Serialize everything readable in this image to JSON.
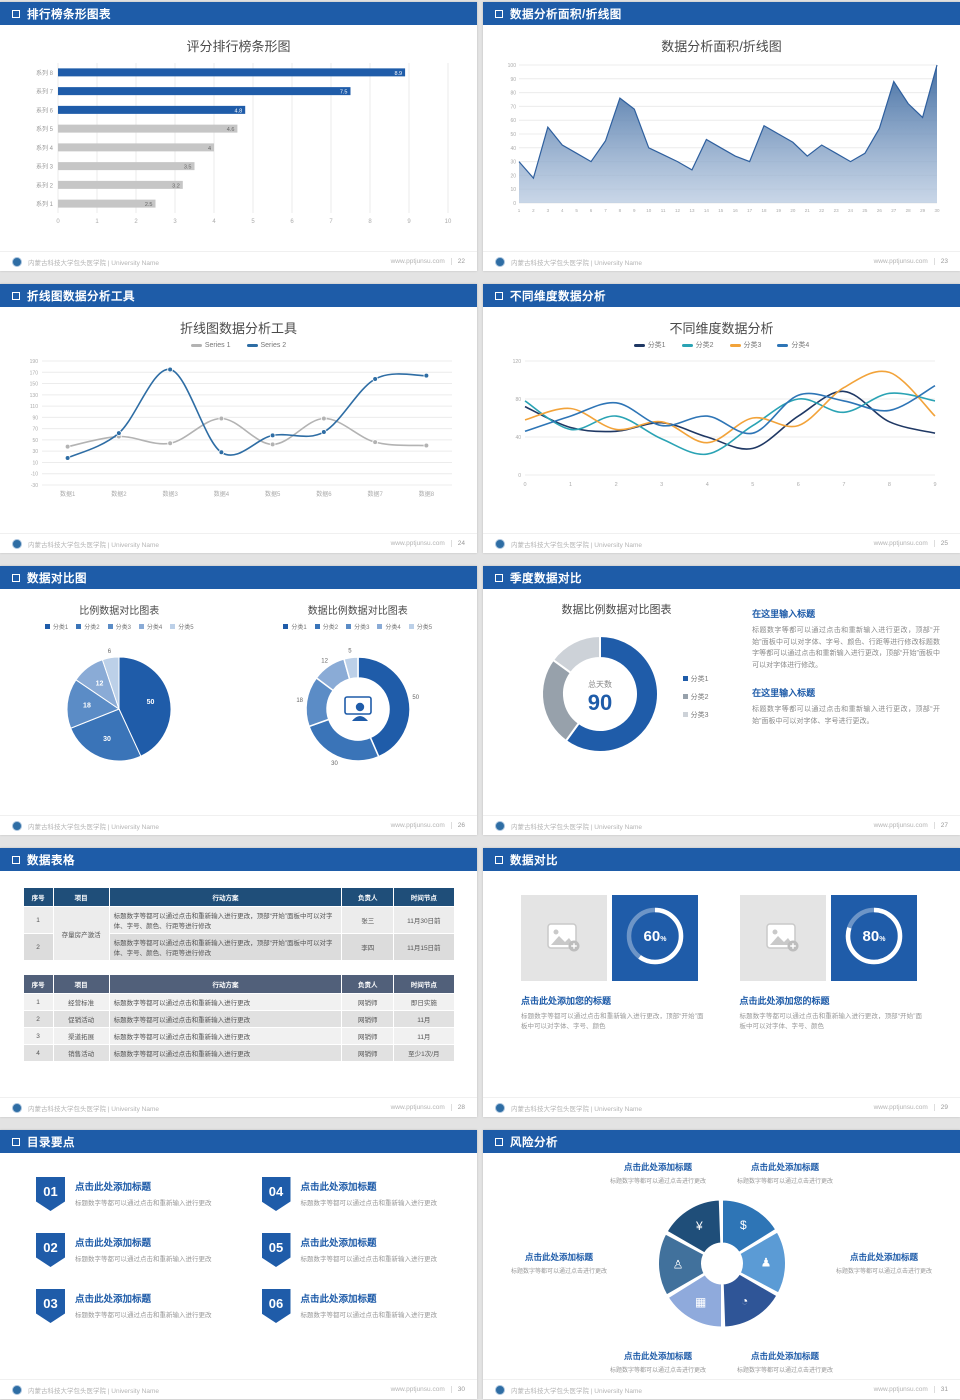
{
  "footer": {
    "org": "内蒙古科技大学包头医学院 | University Name",
    "site": "www.pptjunsu.com"
  },
  "slides": [
    {
      "page": "22",
      "header": "排行榜条形图表",
      "title": "评分排行榜条形图"
    },
    {
      "page": "23",
      "header": "数据分析面积/折线图",
      "title": "数据分析面积/折线图"
    },
    {
      "page": "24",
      "header": "折线图数据分析工具",
      "title": "折线图数据分析工具"
    },
    {
      "page": "25",
      "header": "不同维度数据分析",
      "title": "不同维度数据分析"
    },
    {
      "page": "26",
      "header": "数据对比图",
      "left_title": "比例数据对比图表",
      "right_title": "数据比例数据对比图表"
    },
    {
      "page": "27",
      "header": "季度数据对比",
      "title": "数据比例数据对比图表",
      "blocks": [
        {
          "heading": "在这里输入标题",
          "body": "标题数字等都可以通过点击和重新输入进行更改，顶部“开始”面板中可以对字体、字号、颜色、行距等进行修改标题数字等都可以通过点击和重新输入进行更改，顶部“开始”面板中可以对字体进行修改。"
        },
        {
          "heading": "在这里输入标题",
          "body": "标题数字等都可以通过点击和重新输入进行更改，顶部“开始”面板中可以对字体、字号进行更改。"
        }
      ]
    },
    {
      "page": "28",
      "header": "数据表格"
    },
    {
      "page": "29",
      "header": "数据对比",
      "cards": [
        {
          "title": "点击此处添加您的标题",
          "body": "标题数字等都可以通过点击和重新输入进行更改，顶部“开始”面板中可以对字体、字号、颜色"
        },
        {
          "title": "点击此处添加您的标题",
          "body": "标题数字等都可以通过点击和重新输入进行更改，顶部“开始”面板中可以对字体、字号、颜色"
        }
      ]
    },
    {
      "page": "30",
      "header": "目录要点",
      "items": [
        {
          "num": "01",
          "title": "点击此处添加标题",
          "desc": "标题数字等都可以通过点击和重新输入进行更改"
        },
        {
          "num": "02",
          "title": "点击此处添加标题",
          "desc": "标题数字等都可以通过点击和重新输入进行更改"
        },
        {
          "num": "03",
          "title": "点击此处添加标题",
          "desc": "标题数字等都可以通过点击和重新输入进行更改"
        },
        {
          "num": "04",
          "title": "点击此处添加标题",
          "desc": "标题数字等都可以通过点击和重新输入进行更改"
        },
        {
          "num": "05",
          "title": "点击此处添加标题",
          "desc": "标题数字等都可以通过点击和重新输入进行更改"
        },
        {
          "num": "06",
          "title": "点击此处添加标题",
          "desc": "标题数字等都可以通过点击和重新输入进行更改"
        }
      ]
    },
    {
      "page": "31",
      "header": "风险分析",
      "items": [
        {
          "title": "点击此处添加标题",
          "desc": "标题数字等都可以通过点击进行更改"
        },
        {
          "title": "点击此处添加标题",
          "desc": "标题数字等都可以通过点击进行更改"
        },
        {
          "title": "点击此处添加标题",
          "desc": "标题数字等都可以通过点击进行更改"
        },
        {
          "title": "点击此处添加标题",
          "desc": "标题数字等都可以通过点击进行更改"
        },
        {
          "title": "点击此处添加标题",
          "desc": "标题数字等都可以通过点击进行更改"
        },
        {
          "title": "点击此处添加标题",
          "desc": "标题数字等都可以通过点击进行更改"
        }
      ],
      "icon_names": [
        "coins",
        "user",
        "pie-chart",
        "grid-chart",
        "users",
        "money-bag"
      ],
      "icon_glyphs": [
        "$",
        "♟",
        "◔",
        "▦",
        "♙",
        "¥"
      ],
      "wheel_colors": [
        "#2e75b6",
        "#5b9bd5",
        "#2f5597",
        "#8faadc",
        "#41719c",
        "#1f4e79"
      ]
    }
  ],
  "tables": {
    "table1": {
      "headers": [
        "序号",
        "项目",
        "行动方案",
        "负责人",
        "时间节点"
      ],
      "widths": [
        "7%",
        "13%",
        "54%",
        "12%",
        "14%"
      ],
      "rows": [
        [
          {
            "t": "1"
          },
          {
            "t": "存量房产激活",
            "rs": 2
          },
          {
            "t": "标题数字等都可以通过点击和重新输入进行更改，顶部“开始”面板中可以对字体、字号、颜色、行距等进行修改",
            "cls": "action"
          },
          {
            "t": "张三"
          },
          {
            "t": "11月30日前"
          }
        ],
        [
          {
            "t": "2"
          },
          null,
          {
            "t": "标题数字等都可以通过点击和重新输入进行更改，顶部“开始”面板中可以对字体、字号、颜色、行距等进行修改",
            "cls": "action"
          },
          {
            "t": "李四"
          },
          {
            "t": "11月15日前"
          }
        ]
      ]
    },
    "table2": {
      "headers": [
        "序号",
        "项目",
        "行动方案",
        "负责人",
        "时间节点"
      ],
      "widths": [
        "7%",
        "13%",
        "54%",
        "12%",
        "14%"
      ],
      "rows": [
        [
          {
            "t": "1"
          },
          {
            "t": "经营标准"
          },
          {
            "t": "标题数字等都可以通过点击和重新输入进行更改",
            "cls": "action"
          },
          {
            "t": "网销师"
          },
          {
            "t": "即日实施"
          }
        ],
        [
          {
            "t": "2"
          },
          {
            "t": "促销活动"
          },
          {
            "t": "标题数字等都可以通过点击和重新输入进行更改",
            "cls": "action"
          },
          {
            "t": "网销师"
          },
          {
            "t": "11月"
          }
        ],
        [
          {
            "t": "3"
          },
          {
            "t": "渠道拓展"
          },
          {
            "t": "标题数字等都可以通过点击和重新输入进行更改",
            "cls": "action"
          },
          {
            "t": "网销师"
          },
          {
            "t": "11月"
          }
        ],
        [
          {
            "t": "4"
          },
          {
            "t": "销售活动"
          },
          {
            "t": "标题数字等都可以通过点击和重新输入进行更改",
            "cls": "action"
          },
          {
            "t": "网销师"
          },
          {
            "t": "至少1次/月"
          }
        ]
      ]
    }
  },
  "chart_data": [
    {
      "id": "bar22",
      "type": "bar",
      "orientation": "horizontal",
      "title": "评分排行榜条形图",
      "categories": [
        "系列 8",
        "系列 7",
        "系列 6",
        "系列 5",
        "系列 4",
        "系列 3",
        "系列 2",
        "系列 1"
      ],
      "values": [
        8.9,
        7.5,
        4.8,
        4.6,
        4,
        3.5,
        3.2,
        2.5
      ],
      "highlight_count": 3,
      "highlight_color": "#1f5ca9",
      "muted_color": "#c6c6c6",
      "xlim": [
        0,
        10
      ],
      "xtick": 1
    },
    {
      "id": "area23",
      "type": "area",
      "title": "数据分析面积/折线图",
      "x": [
        1,
        2,
        3,
        4,
        5,
        6,
        7,
        8,
        9,
        10,
        11,
        12,
        13,
        14,
        15,
        16,
        17,
        18,
        19,
        20,
        21,
        22,
        23,
        24,
        25,
        26,
        27,
        28,
        29,
        30
      ],
      "values": [
        30,
        18,
        55,
        42,
        36,
        30,
        45,
        76,
        68,
        40,
        35,
        30,
        24,
        46,
        40,
        34,
        30,
        56,
        50,
        44,
        34,
        42,
        36,
        30,
        36,
        54,
        88,
        72,
        62,
        100
      ],
      "ylim": [
        0,
        100
      ],
      "ytick": 10,
      "line_color": "#2e5f9e",
      "fill_top": "#3a679e",
      "fill_bottom": "#b7c9e0"
    },
    {
      "id": "line24",
      "type": "line",
      "title": "折线图数据分析工具",
      "categories": [
        "数据1",
        "数据2",
        "数据3",
        "数据4",
        "数据5",
        "数据6",
        "数据7",
        "数据8"
      ],
      "ylim": [
        -30,
        190
      ],
      "ytick": 20,
      "series": [
        {
          "name": "Series 1",
          "color": "#b3b3b3",
          "values": [
            38,
            56,
            44,
            88,
            42,
            88,
            46,
            40
          ]
        },
        {
          "name": "Series 2",
          "color": "#2e6da4",
          "values": [
            18,
            62,
            175,
            28,
            58,
            64,
            158,
            164
          ]
        }
      ]
    },
    {
      "id": "line25",
      "type": "line",
      "title": "不同维度数据分析",
      "x": [
        0,
        1,
        2,
        3,
        4,
        5,
        6,
        7,
        8,
        9
      ],
      "ylim": [
        0,
        120
      ],
      "ytick": 40,
      "series": [
        {
          "name": "分类1",
          "color": "#1f3864",
          "values": [
            72,
            50,
            46,
            55,
            40,
            28,
            62,
            88,
            56,
            44
          ]
        },
        {
          "name": "分类2",
          "color": "#2aa3b4",
          "values": [
            78,
            48,
            62,
            38,
            22,
            52,
            80,
            66,
            86,
            78
          ]
        },
        {
          "name": "分类3",
          "color": "#f2a33a",
          "values": [
            58,
            70,
            48,
            56,
            34,
            60,
            52,
            92,
            108,
            62
          ]
        },
        {
          "name": "分类4",
          "color": "#2e75b6",
          "values": [
            46,
            62,
            76,
            52,
            62,
            44,
            84,
            78,
            68,
            94
          ]
        }
      ]
    },
    {
      "id": "pie26",
      "type": "pie",
      "title": "比例数据对比图表",
      "labels": [
        "分类1",
        "分类2",
        "分类3",
        "分类4",
        "分类5"
      ],
      "values": [
        50,
        30,
        18,
        12,
        6
      ],
      "colors": [
        "#1f5ca9",
        "#3a74b8",
        "#5b8cc6",
        "#8aabd6",
        "#bcd0e8"
      ]
    },
    {
      "id": "donut26",
      "type": "donut",
      "title": "数据比例数据对比图表",
      "labels": [
        "分类1",
        "分类2",
        "分类3",
        "分类4",
        "分类5"
      ],
      "values": [
        50,
        30,
        18,
        12,
        5
      ],
      "colors": [
        "#1f5ca9",
        "#3a74b8",
        "#5b8cc6",
        "#8aabd6",
        "#bcd0e8"
      ]
    },
    {
      "id": "donut27",
      "type": "donut",
      "title": "数据比例数据对比图表",
      "labels": [
        "分类1",
        "分类2",
        "分类3"
      ],
      "values": [
        60,
        25,
        15
      ],
      "colors": [
        "#1f5ca9",
        "#97a1ab",
        "#cdd2d8"
      ],
      "center_label": "总天数",
      "center_value": "90"
    },
    {
      "id": "progress29",
      "type": "progress",
      "values": [
        60,
        80
      ],
      "unit": "%"
    }
  ]
}
